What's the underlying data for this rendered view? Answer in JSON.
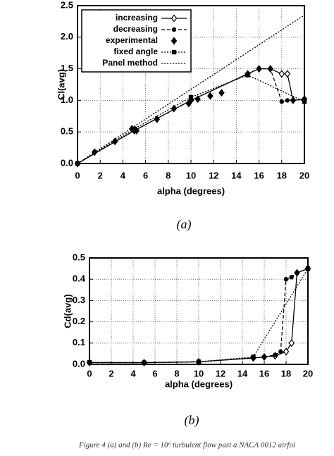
{
  "chart_data": [
    {
      "type": "line",
      "label": "(a)",
      "xlabel": "alpha (degrees)",
      "ylabel": "Cl(avg)",
      "xlim": [
        0,
        20
      ],
      "ylim": [
        0,
        2.5
      ],
      "xticks": [
        0,
        2,
        4,
        6,
        8,
        10,
        12,
        14,
        16,
        18,
        20
      ],
      "yticks": [
        {
          "value": 0,
          "label": "0.0"
        },
        0.5,
        {
          "value": 1,
          "label": "1.0"
        },
        1.5,
        {
          "value": 2,
          "label": "2.0"
        },
        2.5
      ],
      "grid": true,
      "legend": "upper left",
      "series": [
        {
          "name": "increasing",
          "color": "#000000",
          "line": "solid",
          "marker": "diamond-open",
          "x": [
            0,
            5,
            10,
            15,
            16,
            17,
            18,
            18.5,
            19,
            20
          ],
          "values": [
            0,
            0.52,
            1.0,
            1.42,
            1.5,
            1.5,
            1.42,
            1.42,
            1.0,
            1.02
          ]
        },
        {
          "name": "decreasing",
          "color": "#000000",
          "line": "dashed",
          "marker": "circle",
          "x": [
            0,
            5,
            10,
            15,
            16,
            17,
            18,
            18.5,
            19,
            20
          ],
          "values": [
            0,
            0.52,
            1.0,
            1.42,
            1.5,
            1.5,
            0.98,
            1.0,
            1.0,
            1.02
          ]
        },
        {
          "name": "experimental",
          "color": "#000000",
          "line": "none",
          "marker": "diamond",
          "x": [
            1.5,
            3.3,
            4.8,
            5.2,
            7,
            8.5,
            9.8,
            10.6,
            11.7,
            12.7
          ],
          "values": [
            0.18,
            0.35,
            0.55,
            0.52,
            0.7,
            0.87,
            0.95,
            1.02,
            1.07,
            1.12
          ]
        },
        {
          "name": "fixed angle",
          "color": "#000000",
          "line": "dotted",
          "marker": "square",
          "x": [
            0,
            5,
            10,
            15,
            20
          ],
          "values": [
            0,
            0.55,
            1.05,
            1.4,
            0.98
          ]
        },
        {
          "name": "Panel method",
          "color": "#000000",
          "line": "dotted",
          "marker": "none",
          "x": [
            0,
            20
          ],
          "values": [
            0,
            2.35
          ]
        }
      ]
    },
    {
      "type": "line",
      "label": "(b)",
      "xlabel": "alpha (degrees)",
      "ylabel": "Cd(avg)",
      "xlim": [
        0,
        20
      ],
      "ylim": [
        0,
        0.5
      ],
      "xticks": [
        0,
        2,
        4,
        6,
        8,
        10,
        12,
        14,
        16,
        18,
        20
      ],
      "yticks": [
        {
          "value": 0,
          "label": "0.0"
        },
        0.1,
        0.2,
        0.3,
        0.4,
        0.5
      ],
      "grid": true,
      "series": [
        {
          "color": "#000000",
          "line": "solid",
          "marker": "diamond-open",
          "x": [
            0,
            5,
            10,
            15,
            16,
            17,
            18,
            18.5,
            19,
            20
          ],
          "values": [
            0.008,
            0.008,
            0.012,
            0.03,
            0.035,
            0.04,
            0.06,
            0.1,
            0.43,
            0.45
          ]
        },
        {
          "color": "#000000",
          "line": "dashed",
          "marker": "circle",
          "x": [
            0,
            5,
            10,
            15,
            16,
            17,
            17.5,
            18,
            18.5,
            19,
            20
          ],
          "values": [
            0.008,
            0.008,
            0.012,
            0.03,
            0.035,
            0.045,
            0.06,
            0.4,
            0.41,
            0.43,
            0.45
          ]
        },
        {
          "color": "#000000",
          "line": "dotted",
          "marker": "square",
          "x": [
            0,
            5,
            10,
            15,
            20
          ],
          "values": [
            0.01,
            0.008,
            0.012,
            0.035,
            0.45
          ]
        }
      ]
    }
  ],
  "caption": "Figure 4 (a) and (b) Re = 10⁶ turbulent flow past a NACA 0012 airfoi"
}
